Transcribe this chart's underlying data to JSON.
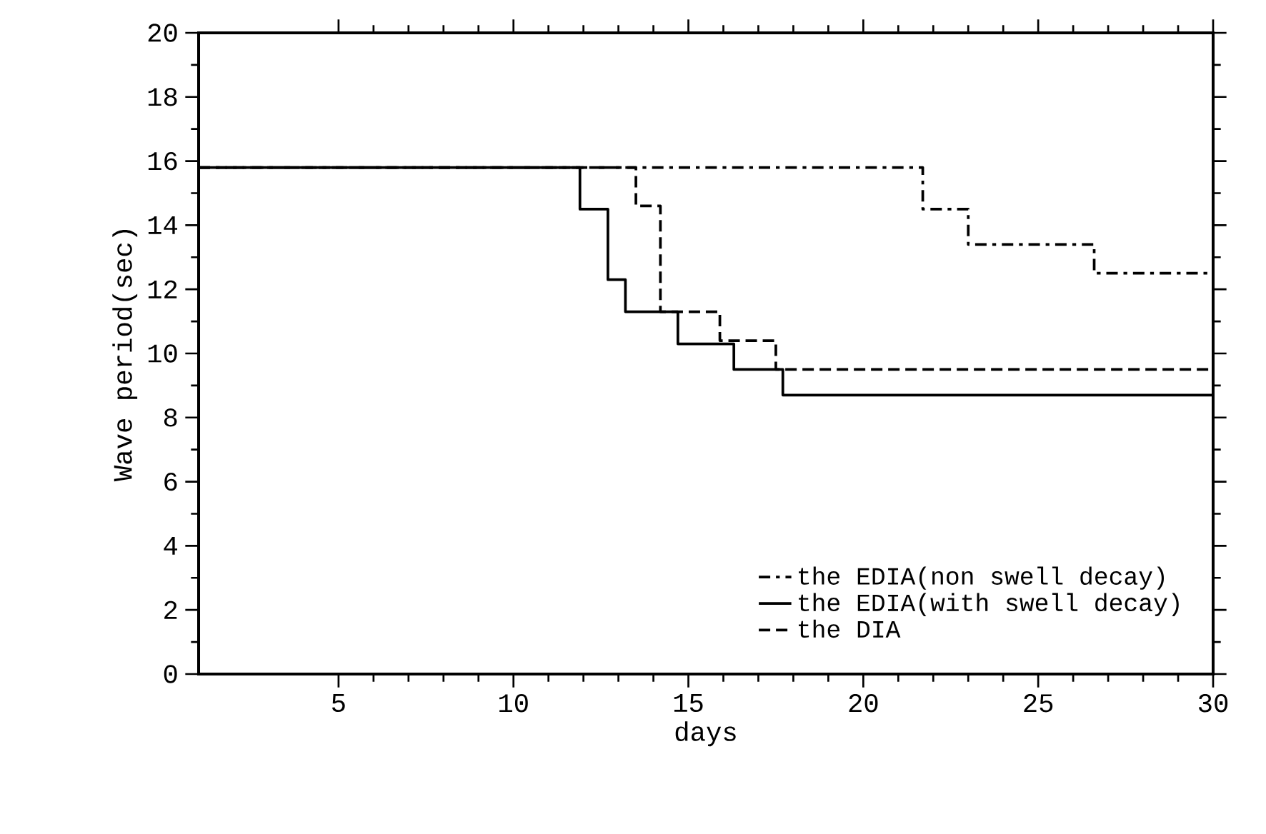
{
  "chart_data": {
    "type": "step",
    "xlabel": "days",
    "ylabel": "Wave period(sec)",
    "xlim": [
      1,
      30
    ],
    "ylim": [
      0,
      20
    ],
    "xticks": [
      5,
      10,
      15,
      20,
      25,
      30
    ],
    "yticks": [
      0,
      2,
      4,
      6,
      8,
      10,
      12,
      14,
      16,
      18,
      20
    ],
    "legend": "bottom right",
    "grid": false,
    "marker": "none",
    "series": [
      {
        "name": "the EDIA(non swell decay)",
        "color": "#000000",
        "line_style": "dashdot",
        "x": [
          1,
          21.7,
          23.0,
          26.6,
          30
        ],
        "values": [
          15.8,
          14.5,
          13.4,
          12.5,
          12.5
        ]
      },
      {
        "name": "the EDIA(with swell decay)",
        "color": "#000000",
        "line_style": "solid",
        "x": [
          1,
          11.9,
          12.7,
          13.2,
          14.7,
          16.3,
          17.7,
          30
        ],
        "values": [
          15.8,
          14.5,
          12.3,
          11.3,
          10.3,
          9.5,
          8.7,
          8.7
        ]
      },
      {
        "name": "the DIA",
        "color": "#000000",
        "line_style": "dashed",
        "x": [
          1,
          13.5,
          14.2,
          15.9,
          17.5,
          30
        ],
        "values": [
          15.8,
          14.6,
          11.3,
          10.4,
          9.5,
          9.5
        ]
      }
    ]
  }
}
